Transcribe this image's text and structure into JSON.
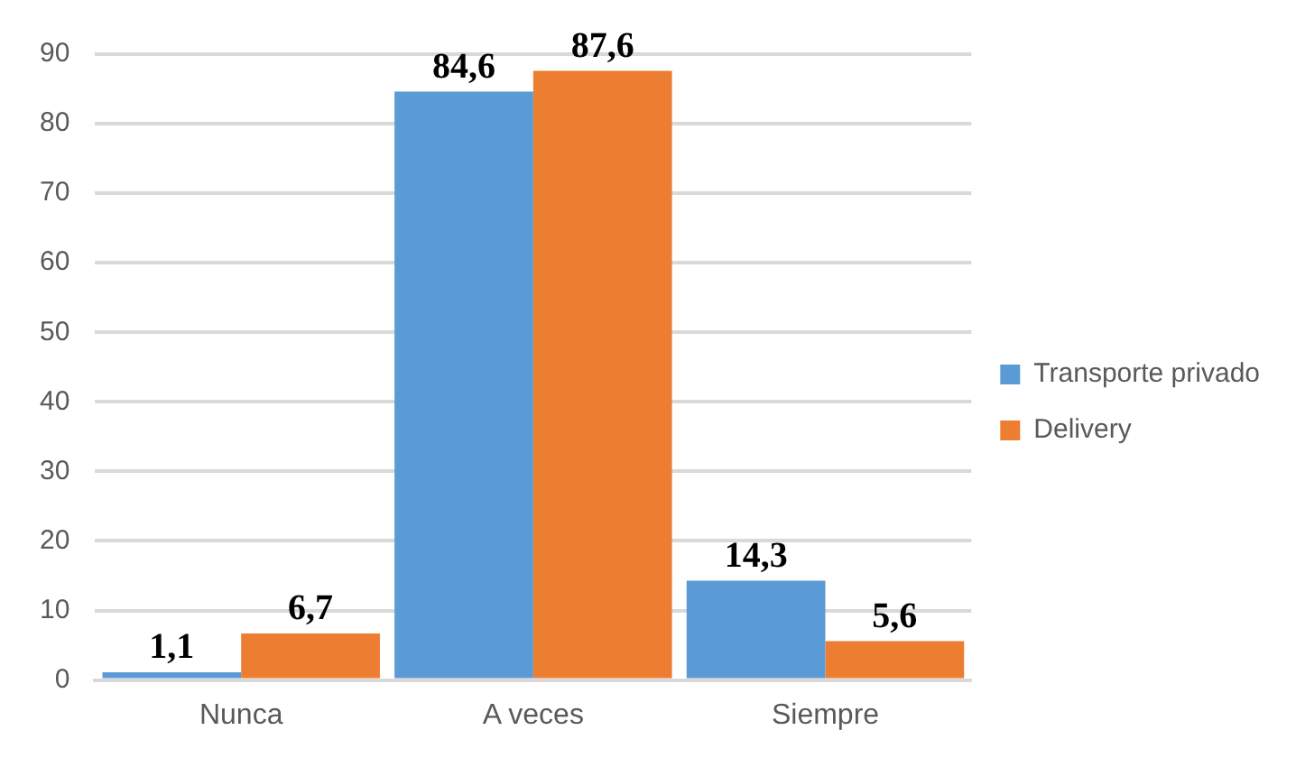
{
  "chart_data": {
    "type": "bar",
    "categories": [
      "Nunca",
      "A veces",
      "Siempre"
    ],
    "series": [
      {
        "name": "Transporte privado",
        "color": "#5b9bd5",
        "values": [
          1.1,
          84.6,
          14.3
        ],
        "value_labels": [
          "1,1",
          "84,6",
          "14,3"
        ]
      },
      {
        "name": "Delivery",
        "color": "#ed7d31",
        "values": [
          6.7,
          87.6,
          5.6
        ],
        "value_labels": [
          "6,7",
          "87,6",
          "5,6"
        ]
      }
    ],
    "ylim": [
      0,
      90
    ],
    "yticks": [
      0,
      10,
      20,
      30,
      40,
      50,
      60,
      70,
      80,
      90
    ],
    "grid": "y",
    "legend": "right"
  }
}
